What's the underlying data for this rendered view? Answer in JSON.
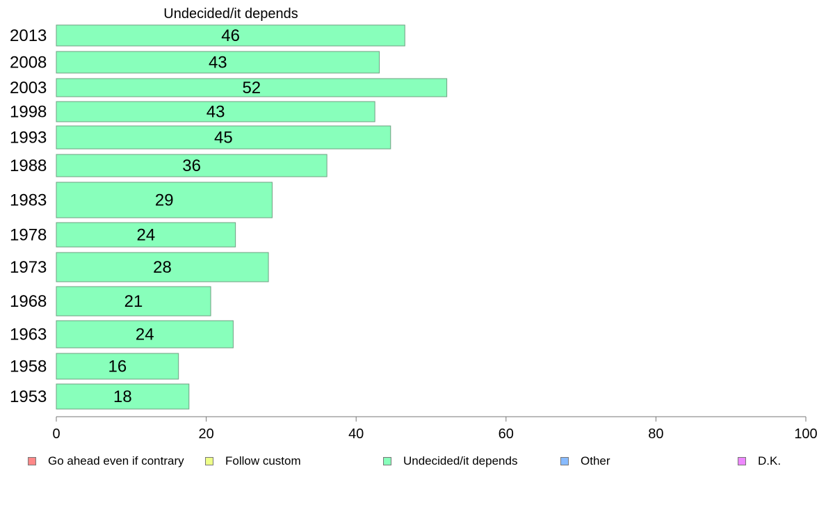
{
  "chart_data": {
    "type": "bar",
    "orientation": "horizontal",
    "title": "Undecided/it depends",
    "categories": [
      "2013",
      "2008",
      "2003",
      "1998",
      "1993",
      "1988",
      "1983",
      "1978",
      "1973",
      "1968",
      "1963",
      "1958",
      "1953"
    ],
    "values": [
      46,
      43,
      52,
      43,
      45,
      36,
      29,
      24,
      28,
      21,
      24,
      16,
      18
    ],
    "bar_values": [
      46.5,
      43.1,
      52.1,
      42.5,
      44.6,
      36.1,
      28.8,
      23.9,
      28.3,
      20.6,
      23.6,
      16.3,
      17.7
    ],
    "xlim": [
      0,
      100
    ],
    "xticks": [
      "0",
      "20",
      "40",
      "60",
      "80",
      "100"
    ],
    "bar_color": "#88ffbb",
    "grid": false,
    "legend_position": "bottom"
  },
  "legend": [
    {
      "label": "Go ahead even if contrary",
      "color": "#ff8888"
    },
    {
      "label": "Follow custom",
      "color": "#eeff88"
    },
    {
      "label": "Undecided/it depends",
      "color": "#88ffbb"
    },
    {
      "label": "Other",
      "color": "#88bbff"
    },
    {
      "label": "D.K.",
      "color": "#ee88ff"
    }
  ]
}
